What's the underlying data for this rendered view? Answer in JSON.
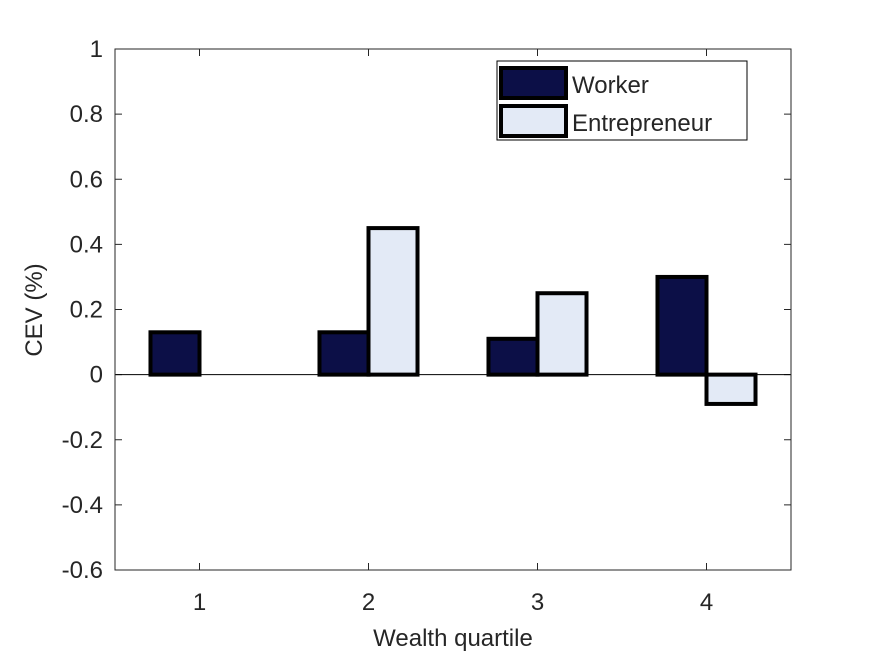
{
  "chart_data": {
    "type": "bar",
    "xlabel": "Wealth quartile",
    "ylabel": "CEV (%)",
    "categories": [
      "1",
      "2",
      "3",
      "4"
    ],
    "series": [
      {
        "name": "Worker",
        "color": "#0c0f47",
        "values": [
          0.13,
          0.13,
          0.11,
          0.3
        ]
      },
      {
        "name": "Entrepreneur",
        "color": "#e3eaf6",
        "values": [
          null,
          0.45,
          0.25,
          -0.09
        ]
      }
    ],
    "ylim": [
      -0.6,
      1
    ],
    "yticks": [
      "-0.6",
      "-0.4",
      "-0.2",
      "0",
      "0.2",
      "0.4",
      "0.6",
      "0.8",
      "1"
    ],
    "grid": false,
    "legend_position": "top-right",
    "bar_edge_color": "#000000"
  }
}
